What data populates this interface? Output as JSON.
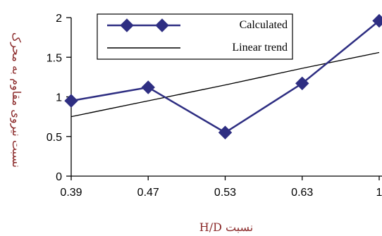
{
  "chart_data": {
    "type": "line",
    "categories": [
      "0.39",
      "0.47",
      "0.53",
      "0.63",
      "1"
    ],
    "series": [
      {
        "name": "Calculated",
        "values": [
          0.95,
          1.12,
          0.55,
          1.17,
          1.96
        ],
        "color": "#2e2e82",
        "marker": "diamond"
      },
      {
        "name": "Linear trend",
        "values": [
          0.75,
          0.95,
          1.15,
          1.36,
          1.56
        ],
        "color": "#000000",
        "marker": "none"
      }
    ],
    "xlabel": "نسبت H/D",
    "ylabel": "نسبت نیروی مقاوم به محرک",
    "ylim": [
      0,
      2
    ],
    "yticks": [
      "0",
      "0.5",
      "1",
      "1.5",
      "2"
    ],
    "grid": false,
    "legend_position": "top-center"
  }
}
